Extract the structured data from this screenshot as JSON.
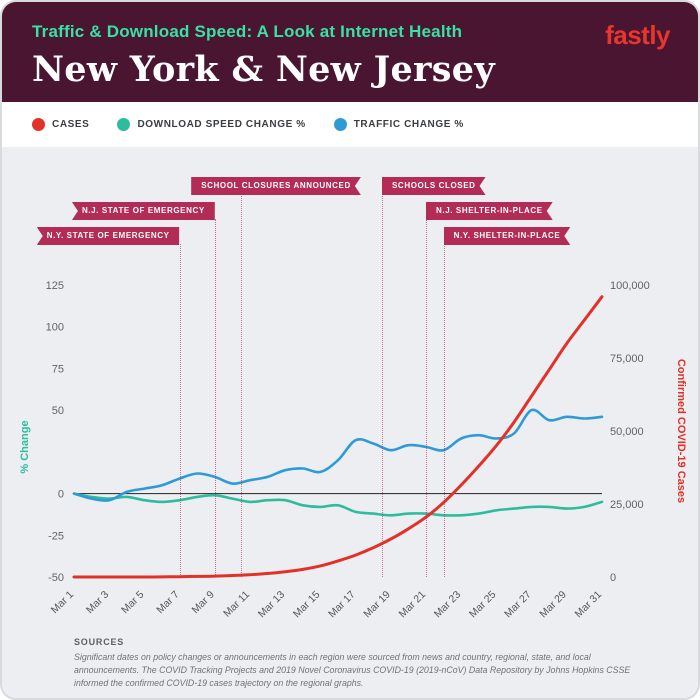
{
  "header": {
    "subtitle": "Traffic & Download Speed: A Look at Internet Health",
    "title": "New York & New Jersey",
    "logo": "fastly"
  },
  "legend": [
    {
      "label": "CASES",
      "color": "#e23127"
    },
    {
      "label": "DOWNLOAD SPEED CHANGE %",
      "color": "#2dbd9c"
    },
    {
      "label": "TRAFFIC CHANGE %",
      "color": "#2e9bd6"
    }
  ],
  "chart_data": {
    "type": "line",
    "title": "New York & New Jersey — Traffic & Download Speed vs Confirmed COVID-19 Cases",
    "days": 31,
    "x_ticks": [
      {
        "day": 0,
        "label": "Mar 1"
      },
      {
        "day": 2,
        "label": "Mar 3"
      },
      {
        "day": 4,
        "label": "Mar 5"
      },
      {
        "day": 6,
        "label": "Mar 7"
      },
      {
        "day": 8,
        "label": "Mar 9"
      },
      {
        "day": 10,
        "label": "Mar 11"
      },
      {
        "day": 12,
        "label": "Mar 13"
      },
      {
        "day": 14,
        "label": "Mar 15"
      },
      {
        "day": 16,
        "label": "Mar 17"
      },
      {
        "day": 18,
        "label": "Mar 19"
      },
      {
        "day": 20,
        "label": "Mar 21"
      },
      {
        "day": 22,
        "label": "Mar 23"
      },
      {
        "day": 24,
        "label": "Mar 25"
      },
      {
        "day": 26,
        "label": "Mar 27"
      },
      {
        "day": 28,
        "label": "Mar 29"
      },
      {
        "day": 30,
        "label": "Mar 31"
      }
    ],
    "left_axis": {
      "title": "% Change",
      "color": "#2dbd9c",
      "ticks": [
        125,
        100,
        75,
        50,
        0,
        -25,
        -50
      ],
      "range": [
        -50,
        137.5
      ]
    },
    "right_axis": {
      "title": "Confirmed COVID-19 Cases",
      "color": "#e23127",
      "ticks": [
        {
          "value": 100000,
          "label": "100,000"
        },
        {
          "value": 75000,
          "label": "75,000"
        },
        {
          "value": 50000,
          "label": "50,000"
        },
        {
          "value": 25000,
          "label": "25,000"
        },
        {
          "value": 0,
          "label": "0"
        }
      ],
      "range": [
        0,
        100000
      ]
    },
    "series": [
      {
        "name": "DOWNLOAD SPEED CHANGE %",
        "axis": "left",
        "color": "#2dbd9c",
        "width": 2.6,
        "values": [
          0,
          -2,
          -3,
          -2,
          -4,
          -5,
          -4,
          -2,
          -1,
          -3,
          -5,
          -4,
          -4,
          -7,
          -8,
          -7,
          -11,
          -12,
          -13,
          -12,
          -12,
          -13,
          -13,
          -12,
          -10,
          -9,
          -8,
          -8,
          -9,
          -8,
          -5
        ]
      },
      {
        "name": "TRAFFIC CHANGE %",
        "axis": "left",
        "color": "#2e9bd6",
        "width": 2.6,
        "values": [
          0,
          -3,
          -4,
          1,
          3,
          5,
          9,
          12,
          10,
          6,
          8,
          10,
          14,
          15,
          13,
          20,
          32,
          30,
          26,
          29,
          28,
          26,
          33,
          35,
          33,
          36,
          50,
          44,
          46,
          45,
          46
        ]
      },
      {
        "name": "CASES",
        "axis": "right",
        "color": "#e23127",
        "width": 3,
        "values": [
          0,
          0,
          0,
          0,
          0,
          50,
          100,
          200,
          300,
          500,
          800,
          1200,
          1800,
          2600,
          3800,
          5500,
          7500,
          10000,
          13000,
          16500,
          20500,
          25500,
          31500,
          38000,
          45000,
          53000,
          62000,
          71000,
          80000,
          88000,
          96000
        ]
      }
    ],
    "events": [
      {
        "label": "N.Y. STATE OF EMERGENCY",
        "day": 6,
        "row": 2,
        "anchor": "end"
      },
      {
        "label": "N.J. STATE OF EMERGENCY",
        "day": 8,
        "row": 1,
        "anchor": "end"
      },
      {
        "label": "SCHOOL CLOSURES ANNOUNCED",
        "day": 9.5,
        "row": 0,
        "anchor": "straddle"
      },
      {
        "label": "SCHOOLS CLOSED",
        "day": 17.5,
        "row": 0,
        "anchor": "start"
      },
      {
        "label": "N.J. SHELTER-IN-PLACE",
        "day": 20,
        "row": 1,
        "anchor": "start"
      },
      {
        "label": "N.Y. SHELTER-IN-PLACE",
        "day": 21,
        "row": 2,
        "anchor": "start"
      }
    ],
    "zero_line": true,
    "grid": false,
    "legend_position": "top"
  },
  "footer": {
    "heading": "SOURCES",
    "text": "Significant dates on policy changes or announcements in each region were sourced from news and country, regional, state, and local announcements. The COVID Tracking Projects and 2019 Novel Coronavirus COVID-19 (2019-nCoV) Data Repository by Johns Hopkins CSSE informed the confirmed COVID-19 cases trajectory on the regional graphs."
  }
}
